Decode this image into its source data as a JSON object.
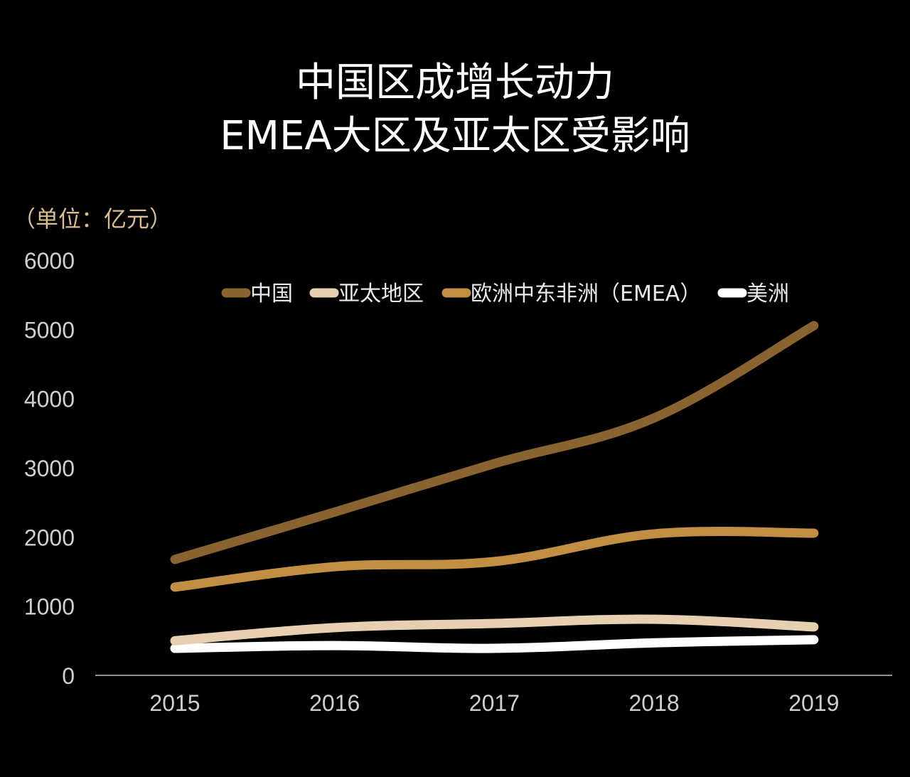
{
  "chart_data": {
    "type": "line",
    "title": "中国区成增长动力",
    "subtitle": "EMEA大区及亚太区受影响",
    "unit_label": "（单位：亿元）",
    "xlabel": "",
    "ylabel": "",
    "categories": [
      "2015",
      "2016",
      "2017",
      "2018",
      "2019"
    ],
    "ylim": [
      0,
      6000
    ],
    "yticks": [
      0,
      1000,
      2000,
      3000,
      4000,
      5000,
      6000
    ],
    "grid": false,
    "legend_position": "top",
    "series": [
      {
        "name": "中国",
        "color": "#8a6430",
        "values": [
          1675,
          2360,
          3060,
          3720,
          5055
        ]
      },
      {
        "name": "亚太地区",
        "color": "#e6d0b0",
        "values": [
          500,
          690,
          750,
          810,
          700
        ]
      },
      {
        "name": "欧洲中东非洲（EMEA）",
        "color": "#c18e43",
        "values": [
          1275,
          1570,
          1645,
          2045,
          2055
        ]
      },
      {
        "name": "美洲",
        "color": "#ffffff",
        "values": [
          390,
          430,
          390,
          470,
          515
        ]
      }
    ]
  }
}
